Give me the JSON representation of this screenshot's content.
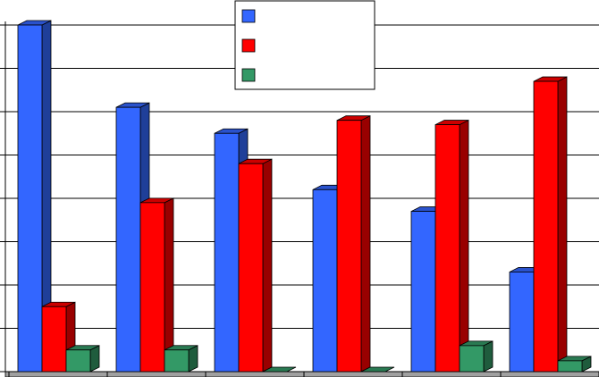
{
  "chart_data": {
    "type": "bar",
    "style": "3d-clustered",
    "categories": [
      "",
      "",
      "",
      "",
      "",
      ""
    ],
    "series": [
      {
        "values": [
          8.0,
          6.1,
          5.5,
          4.2,
          3.7,
          2.3
        ]
      },
      {
        "values": [
          1.5,
          3.9,
          4.8,
          5.8,
          5.7,
          6.7
        ]
      },
      {
        "values": [
          0.5,
          0.5,
          0.0,
          0.0,
          0.6,
          0.25
        ]
      }
    ],
    "ylim": [
      0,
      8
    ],
    "grid": true,
    "legend_position": "top-center",
    "colors": [
      "#3366ff",
      "#ff0000",
      "#339966"
    ],
    "side_colors": [
      "#1f3f99",
      "#990000",
      "#1f5c3d"
    ],
    "top_colors": [
      "#2a52cc",
      "#cc0000",
      "#2a7a52"
    ],
    "title": "",
    "xlabel": "",
    "ylabel": ""
  }
}
